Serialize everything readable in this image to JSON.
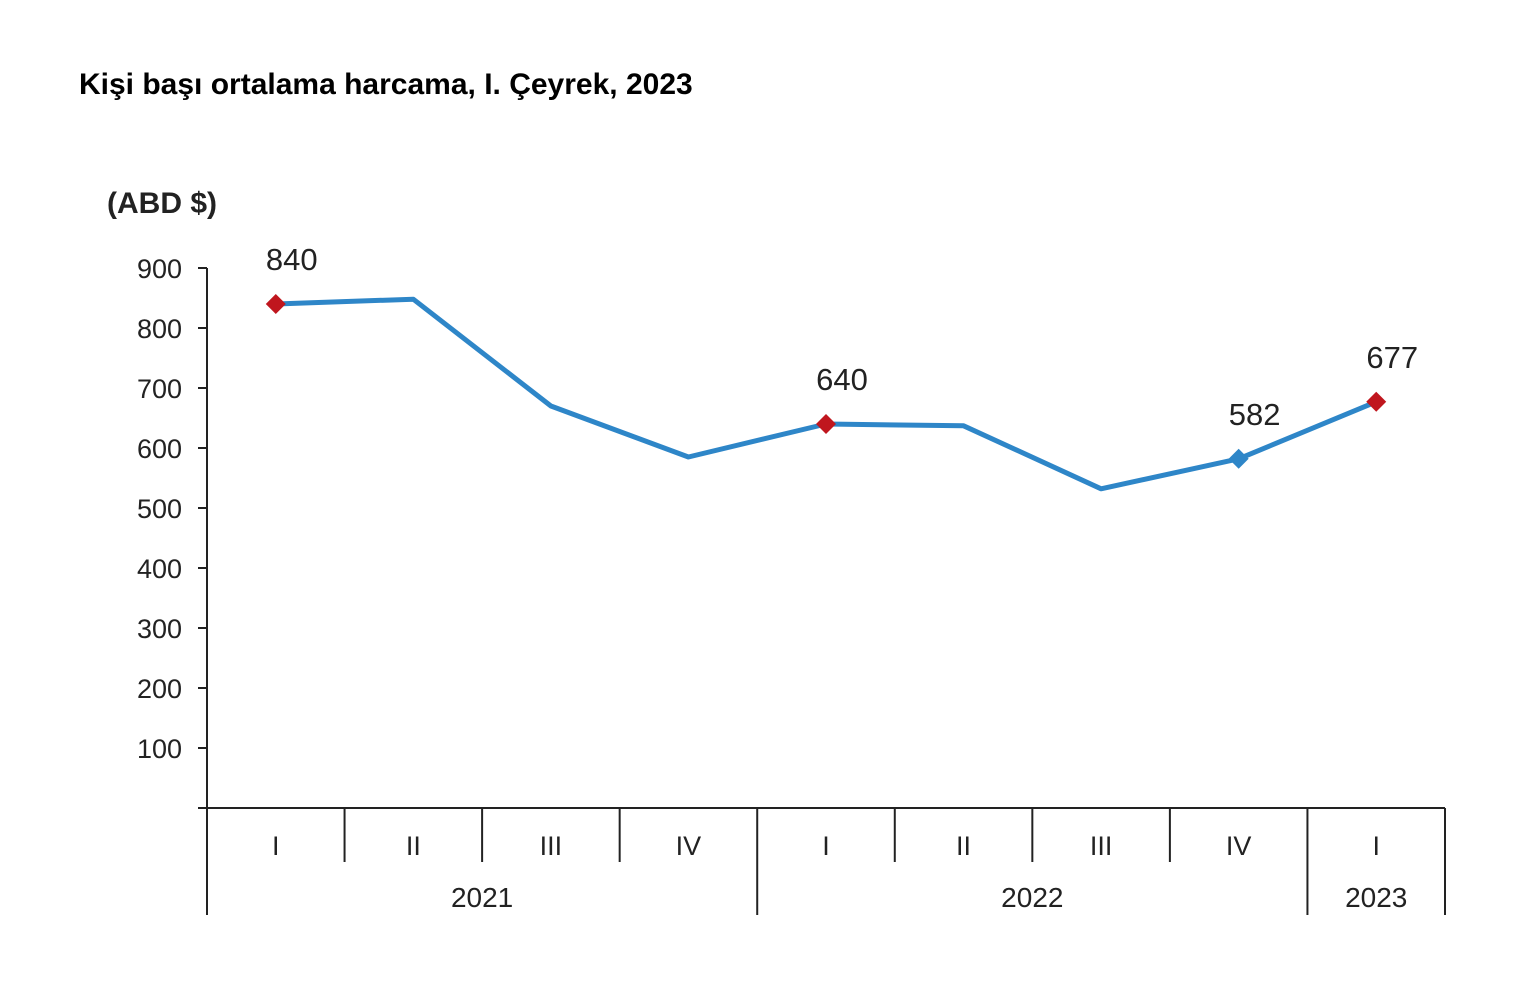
{
  "title": "Kişi başı ortalama harcama, I. Çeyrek, 2023",
  "chart_data": {
    "type": "line",
    "title": "Kişi başı ortalama harcama, I. Çeyrek, 2023",
    "ylabel": "(ABD $)",
    "xlabel": "",
    "ylim": [
      0,
      900
    ],
    "yticks": [
      100,
      200,
      300,
      400,
      500,
      600,
      700,
      800,
      900
    ],
    "categories": [
      "I",
      "II",
      "III",
      "IV",
      "I",
      "II",
      "III",
      "IV",
      "I"
    ],
    "groups": [
      {
        "label": "2021",
        "count": 4
      },
      {
        "label": "2022",
        "count": 4
      },
      {
        "label": "2023",
        "count": 1
      }
    ],
    "series": [
      {
        "values": [
          840,
          848,
          670,
          585,
          640,
          637,
          532,
          582,
          677
        ],
        "color": "#2E86C8"
      }
    ],
    "markers": [
      {
        "index": 0,
        "label": "840",
        "color": "#C0161E"
      },
      {
        "index": 4,
        "label": "640",
        "color": "#C0161E"
      },
      {
        "index": 7,
        "label": "582",
        "color": "#2E86C8"
      },
      {
        "index": 8,
        "label": "677",
        "color": "#C0161E"
      }
    ],
    "grid": false,
    "legend": "none"
  }
}
